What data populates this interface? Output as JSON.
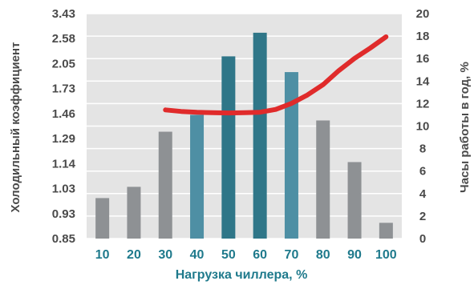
{
  "chart_data": {
    "type": "bar",
    "categories": [
      "10",
      "20",
      "30",
      "40",
      "50",
      "60",
      "70",
      "80",
      "90",
      "100"
    ],
    "series": [
      {
        "axis": "right",
        "values": [
          3.6,
          4.6,
          9.5,
          11.0,
          16.2,
          18.3,
          14.8,
          10.5,
          6.8,
          1.4
        ],
        "colors": [
          "#8e9194",
          "#8e9194",
          "#8e9194",
          "#4e8fa4",
          "#2f7688",
          "#2f7688",
          "#4e8fa4",
          "#8e9194",
          "#8e9194",
          "#8e9194"
        ]
      },
      {
        "type": "line",
        "axis": "left",
        "color": "#e02b2b",
        "x": [
          30,
          35,
          40,
          45,
          50,
          55,
          60,
          65,
          70,
          75,
          80,
          85,
          90,
          95,
          100
        ],
        "values": [
          1.5,
          1.483,
          1.474,
          1.469,
          1.467,
          1.469,
          1.475,
          1.505,
          1.57,
          1.66,
          1.78,
          1.96,
          2.16,
          2.38,
          2.64
        ]
      }
    ],
    "xlabel": "Нагрузка чиллера, %",
    "ylabel_left": "Холодильный коэффициент",
    "ylabel_right": "Часы работы в год, %",
    "yticks_left": [
      "0.85",
      "0.93",
      "1.03",
      "1.14",
      "1.29",
      "1.46",
      "1.73",
      "2.05",
      "2.58",
      "3.43"
    ],
    "yticks_left_scale": "reciprocal",
    "yticks_right": [
      "0",
      "2",
      "4",
      "6",
      "8",
      "10",
      "12",
      "14",
      "16",
      "18",
      "20"
    ],
    "ylim_right": [
      0,
      20
    ],
    "grid": true,
    "colors": {
      "plot_bg": "#e4e4e4",
      "grid": "#ffffff",
      "tick_text": "#4a4a4a",
      "x_text": "#1f7a8c"
    }
  }
}
